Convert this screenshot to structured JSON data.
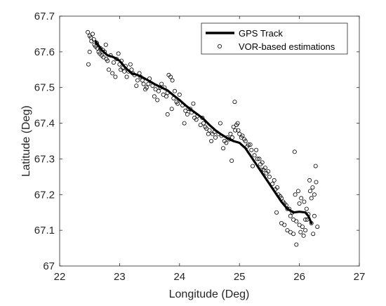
{
  "chart_data": {
    "type": "scatter",
    "title": "",
    "xlabel": "Longitude (Deg)",
    "ylabel": "Latitude (Deg)",
    "xlim": [
      22,
      27
    ],
    "ylim": [
      67,
      67.7
    ],
    "xticks": [
      22,
      23,
      24,
      25,
      26,
      27
    ],
    "yticks": [
      67,
      67.1,
      67.2,
      67.3,
      67.4,
      67.5,
      67.6,
      67.7
    ],
    "xtick_labels": [
      "22",
      "23",
      "24",
      "25",
      "26",
      "27"
    ],
    "ytick_labels": [
      "67",
      "67.1",
      "67.2",
      "67.3",
      "67.4",
      "67.5",
      "67.6",
      "67.7"
    ],
    "grid": false,
    "legend_position": "top-right",
    "series": [
      {
        "name": "GPS Track",
        "kind": "line",
        "color": "#000000",
        "x": [
          22.6,
          22.7,
          22.8,
          22.9,
          23.0,
          23.1,
          23.2,
          23.3,
          23.4,
          23.5,
          23.6,
          23.7,
          23.8,
          23.9,
          24.0,
          24.1,
          24.2,
          24.3,
          24.4,
          24.5,
          24.6,
          24.7,
          24.8,
          24.9,
          25.0,
          25.1,
          25.2,
          25.3,
          25.4,
          25.5,
          25.6,
          25.7,
          25.8,
          25.9,
          26.0,
          26.1,
          26.15,
          26.2
        ],
        "y": [
          67.63,
          67.605,
          67.59,
          67.585,
          67.575,
          67.555,
          67.54,
          67.535,
          67.527,
          67.518,
          67.508,
          67.5,
          67.492,
          67.478,
          67.465,
          67.45,
          67.437,
          67.425,
          67.412,
          67.395,
          67.38,
          67.368,
          67.358,
          67.35,
          67.345,
          67.33,
          67.305,
          67.28,
          67.255,
          67.23,
          67.205,
          67.18,
          67.16,
          67.15,
          67.152,
          67.15,
          67.14,
          67.12
        ]
      },
      {
        "name": "VOR-based estimations",
        "kind": "scatter",
        "marker": "open-circle",
        "color": "#000000",
        "x": [
          22.47,
          22.5,
          22.52,
          22.55,
          22.58,
          22.6,
          22.62,
          22.65,
          22.68,
          22.7,
          22.72,
          22.75,
          22.78,
          22.8,
          22.48,
          22.53,
          22.57,
          22.63,
          22.67,
          22.73,
          22.77,
          22.5,
          22.85,
          22.9,
          22.95,
          23.0,
          23.05,
          22.88,
          22.93,
          22.98,
          23.02,
          23.08,
          23.1,
          23.15,
          23.2,
          23.12,
          23.18,
          23.22,
          23.03,
          22.82,
          23.25,
          23.3,
          23.35,
          23.4,
          23.45,
          23.5,
          23.28,
          23.33,
          23.38,
          23.43,
          23.48,
          23.55,
          23.6,
          23.65,
          23.7,
          23.75,
          23.8,
          23.58,
          23.63,
          23.68,
          23.73,
          23.78,
          23.82,
          23.85,
          23.88,
          23.9,
          23.95,
          24.0,
          23.92,
          23.97,
          23.8,
          23.87,
          24.05,
          24.1,
          24.15,
          24.2,
          24.25,
          24.3,
          24.08,
          24.13,
          24.18,
          24.23,
          24.28,
          24.35,
          24.4,
          24.45,
          24.5,
          24.55,
          24.6,
          24.38,
          24.43,
          24.48,
          24.53,
          24.58,
          24.65,
          24.7,
          24.75,
          24.8,
          24.85,
          24.9,
          24.68,
          24.73,
          24.78,
          24.83,
          24.88,
          24.93,
          24.95,
          25.0,
          25.05,
          25.1,
          25.15,
          25.2,
          24.98,
          25.03,
          25.08,
          25.13,
          25.18,
          24.87,
          24.92,
          24.97,
          25.25,
          25.3,
          25.35,
          25.4,
          25.45,
          25.5,
          25.28,
          25.33,
          25.38,
          25.43,
          25.48,
          25.22,
          25.36,
          25.55,
          25.6,
          25.65,
          25.7,
          25.75,
          25.8,
          25.58,
          25.63,
          25.68,
          25.73,
          25.78,
          25.83,
          25.85,
          25.9,
          25.95,
          26.0,
          26.05,
          26.1,
          25.88,
          25.93,
          25.98,
          26.03,
          26.08,
          26.12,
          26.15,
          26.2,
          26.25,
          26.18,
          26.22,
          26.28,
          26.13,
          25.75,
          25.8,
          25.85,
          25.9,
          25.95,
          26.02,
          26.07,
          26.23,
          26.27,
          26.17,
          25.62,
          25.7,
          25.92,
          26.0,
          26.1,
          26.2,
          26.25,
          26.3
        ],
        "y": [
          67.655,
          67.645,
          67.64,
          67.65,
          67.62,
          67.615,
          67.625,
          67.6,
          67.61,
          67.59,
          67.605,
          67.6,
          67.58,
          67.575,
          67.565,
          67.63,
          67.635,
          67.61,
          67.595,
          67.585,
          67.62,
          67.6,
          67.59,
          67.57,
          67.58,
          67.565,
          67.555,
          67.54,
          67.53,
          67.595,
          67.55,
          67.545,
          67.56,
          67.545,
          67.55,
          67.53,
          67.565,
          67.54,
          67.575,
          67.55,
          67.535,
          67.52,
          67.53,
          67.51,
          67.5,
          67.525,
          67.505,
          67.54,
          67.52,
          67.495,
          67.51,
          67.505,
          67.495,
          67.49,
          67.51,
          67.5,
          67.485,
          67.475,
          67.465,
          67.5,
          67.48,
          67.475,
          67.535,
          67.53,
          67.52,
          67.47,
          67.46,
          67.48,
          67.49,
          67.455,
          67.425,
          67.44,
          67.45,
          67.435,
          67.44,
          67.43,
          67.415,
          67.42,
          67.4,
          67.425,
          67.44,
          67.455,
          67.41,
          67.395,
          67.4,
          67.385,
          67.38,
          67.37,
          67.36,
          67.415,
          67.39,
          67.37,
          67.35,
          67.375,
          67.37,
          67.365,
          67.35,
          67.36,
          67.37,
          67.39,
          67.4,
          67.33,
          67.345,
          67.355,
          67.36,
          67.38,
          67.395,
          67.37,
          67.365,
          67.35,
          67.34,
          67.325,
          67.38,
          67.36,
          67.355,
          67.335,
          67.34,
          67.295,
          67.46,
          67.4,
          67.31,
          67.3,
          67.285,
          67.27,
          67.26,
          67.25,
          67.325,
          67.3,
          67.29,
          67.275,
          67.265,
          67.28,
          67.27,
          67.23,
          67.215,
          67.2,
          67.19,
          67.175,
          67.16,
          67.24,
          67.22,
          67.195,
          67.18,
          67.17,
          67.16,
          67.14,
          67.13,
          67.125,
          67.115,
          67.11,
          67.1,
          67.15,
          67.2,
          67.21,
          67.19,
          67.18,
          67.16,
          67.145,
          67.19,
          67.2,
          67.21,
          67.22,
          67.235,
          67.13,
          67.115,
          67.1,
          67.095,
          67.09,
          67.06,
          67.095,
          67.085,
          67.09,
          67.28,
          67.24,
          67.15,
          67.12,
          67.32,
          67.175,
          67.13,
          67.12,
          67.14,
          67.11
        ]
      }
    ]
  }
}
